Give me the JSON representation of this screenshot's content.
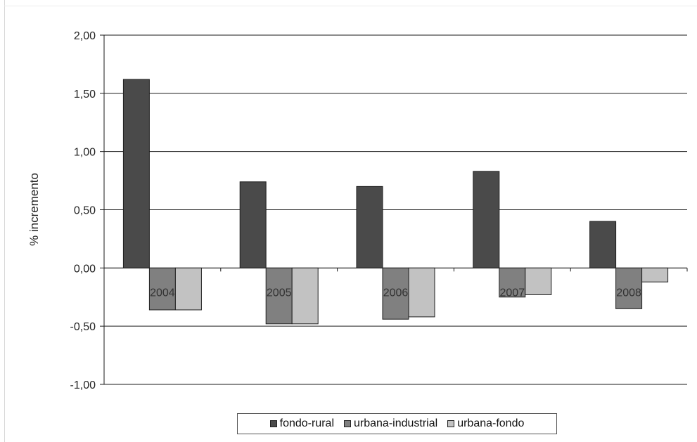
{
  "chart_data": {
    "type": "bar",
    "ylabel": "% incremento",
    "xlabel": "",
    "categories": [
      "2004",
      "2005",
      "2006",
      "2007",
      "2008"
    ],
    "ylim": [
      -1.0,
      2.0
    ],
    "yticks": [
      2.0,
      1.5,
      1.0,
      0.5,
      0.0,
      -0.5,
      -1.0
    ],
    "ytick_labels": [
      "2,00",
      "1,50",
      "1,00",
      "0,50",
      "0,00",
      "-0,50",
      "-1,00"
    ],
    "grid": true,
    "legend_position": "bottom",
    "series": [
      {
        "name": "fondo-rural",
        "color": "#4a4a4a",
        "values": [
          1.62,
          0.74,
          0.7,
          0.83,
          0.4
        ]
      },
      {
        "name": "urbana-industrial",
        "color": "#808080",
        "values": [
          -0.36,
          -0.48,
          -0.44,
          -0.25,
          -0.35
        ]
      },
      {
        "name": "urbana-fondo",
        "color": "#c2c2c2",
        "values": [
          -0.36,
          -0.48,
          -0.42,
          -0.23,
          -0.12
        ]
      }
    ]
  }
}
